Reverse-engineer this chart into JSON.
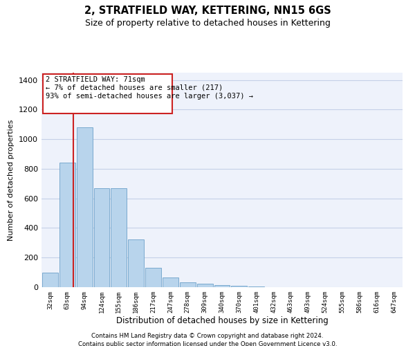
{
  "title": "2, STRATFIELD WAY, KETTERING, NN15 6GS",
  "subtitle": "Size of property relative to detached houses in Kettering",
  "xlabel": "Distribution of detached houses by size in Kettering",
  "ylabel": "Number of detached properties",
  "bar_labels": [
    "32sqm",
    "63sqm",
    "94sqm",
    "124sqm",
    "155sqm",
    "186sqm",
    "217sqm",
    "247sqm",
    "278sqm",
    "309sqm",
    "340sqm",
    "370sqm",
    "401sqm",
    "432sqm",
    "463sqm",
    "493sqm",
    "524sqm",
    "555sqm",
    "586sqm",
    "616sqm",
    "647sqm"
  ],
  "bar_values": [
    100,
    840,
    1080,
    670,
    670,
    325,
    130,
    65,
    35,
    25,
    15,
    10,
    5,
    2,
    1,
    0,
    0,
    0,
    0,
    0,
    0
  ],
  "bar_color": "#b8d4ec",
  "bar_edge_color": "#6aa0c8",
  "annotation_text": "2 STRATFIELD WAY: 71sqm\n← 7% of detached houses are smaller (217)\n93% of semi-detached houses are larger (3,037) →",
  "vline_x_index": 1.35,
  "vline_color": "#cc2222",
  "ylim": [
    0,
    1450
  ],
  "yticks": [
    0,
    200,
    400,
    600,
    800,
    1000,
    1200,
    1400
  ],
  "footer_line1": "Contains HM Land Registry data © Crown copyright and database right 2024.",
  "footer_line2": "Contains public sector information licensed under the Open Government Licence v3.0.",
  "bg_color": "#eef2fb",
  "grid_color": "#c5d0e8"
}
